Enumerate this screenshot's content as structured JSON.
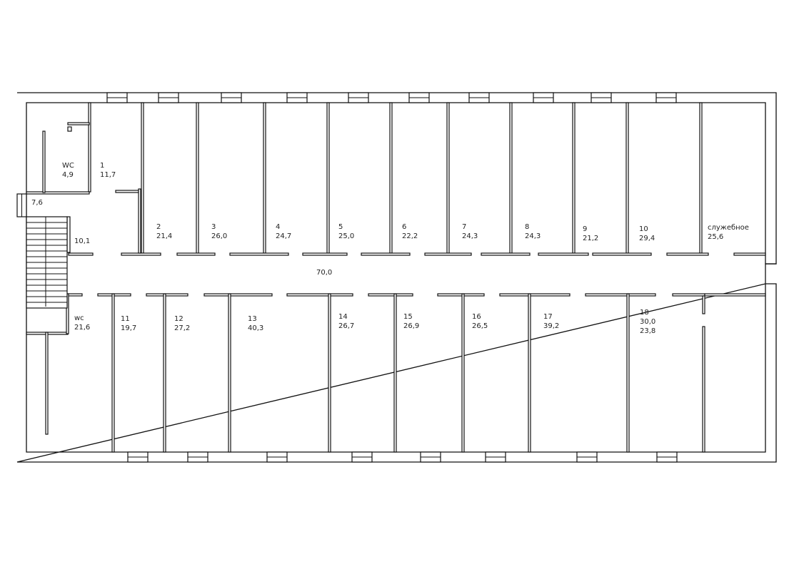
{
  "plan": {
    "corridor_area": "70,0",
    "rooms_top": [
      {
        "name": "WC",
        "area": "4,9"
      },
      {
        "name": "1",
        "area": "11,7"
      },
      {
        "name": "2",
        "area": "21,4"
      },
      {
        "name": "3",
        "area": "26,0"
      },
      {
        "name": "4",
        "area": "24,7"
      },
      {
        "name": "5",
        "area": "25,0"
      },
      {
        "name": "6",
        "area": "22,2"
      },
      {
        "name": "7",
        "area": "24,3"
      },
      {
        "name": "8",
        "area": "24,3"
      },
      {
        "name": "9",
        "area": "21,2"
      },
      {
        "name": "10",
        "area": "29,4"
      },
      {
        "name": "служебное",
        "area": "25,6"
      }
    ],
    "rooms_bottom": [
      {
        "name": "wc",
        "area": "21,6"
      },
      {
        "name": "11",
        "area": "19,7"
      },
      {
        "name": "12",
        "area": "27,2"
      },
      {
        "name": "13",
        "area": "40,3"
      },
      {
        "name": "14",
        "area": "26,7"
      },
      {
        "name": "15",
        "area": "26,9"
      },
      {
        "name": "16",
        "area": "26,5"
      },
      {
        "name": "17",
        "area": "39,2"
      },
      {
        "name": "18",
        "area": "30,0",
        "area2": "23,8"
      }
    ],
    "vestibule_area": "7,6",
    "stair_hall_area": "10,1"
  }
}
